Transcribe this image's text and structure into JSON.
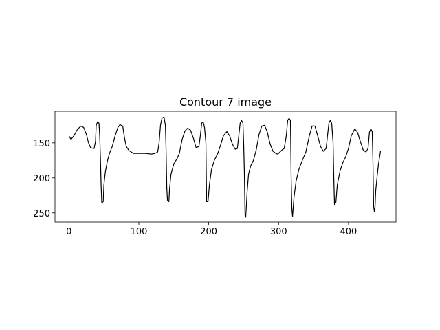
{
  "chart_data": {
    "type": "line",
    "title": "Contour 7 image",
    "color": "#000000",
    "x": [
      0,
      3,
      7,
      12,
      17,
      21,
      25,
      28,
      31,
      36,
      38,
      39,
      41,
      43,
      44,
      45,
      46,
      47,
      49,
      50,
      52,
      55,
      58,
      62,
      66,
      70,
      73,
      77,
      79,
      82,
      86,
      92,
      100,
      110,
      118,
      123,
      127,
      129,
      131,
      133,
      136,
      138,
      139,
      140,
      141,
      143,
      144,
      146,
      150,
      155,
      158,
      162,
      166,
      170,
      174,
      178,
      182,
      186,
      188,
      190,
      192,
      194,
      196,
      197,
      199,
      201,
      204,
      208,
      213,
      217,
      221,
      226,
      230,
      234,
      238,
      241,
      243,
      245,
      247,
      249,
      250,
      251,
      252,
      253,
      255,
      257,
      260,
      264,
      268,
      272,
      276,
      280,
      284,
      288,
      292,
      296,
      299,
      302,
      305,
      308,
      311,
      313,
      315,
      317,
      318,
      319,
      320,
      322,
      325,
      329,
      334,
      339,
      344,
      348,
      352,
      356,
      360,
      364,
      368,
      370,
      372,
      374,
      376,
      378,
      379,
      380,
      382,
      384,
      388,
      392,
      396,
      400,
      404,
      409,
      413,
      417,
      421,
      425,
      428,
      430,
      432,
      434,
      435,
      436,
      437,
      438,
      439,
      441,
      443,
      446
    ],
    "values": [
      140,
      145,
      140,
      131,
      126,
      128,
      138,
      150,
      157,
      158,
      148,
      125,
      120,
      122,
      140,
      170,
      210,
      236,
      234,
      210,
      192,
      176,
      165,
      155,
      140,
      128,
      124,
      126,
      140,
      155,
      161,
      165,
      165,
      165,
      166,
      165,
      163,
      150,
      125,
      115,
      113,
      125,
      160,
      215,
      232,
      234,
      215,
      195,
      180,
      172,
      165,
      145,
      133,
      129,
      132,
      143,
      157,
      155,
      140,
      122,
      120,
      128,
      150,
      234,
      234,
      210,
      188,
      175,
      165,
      153,
      140,
      134,
      140,
      152,
      159,
      158,
      140,
      122,
      118,
      122,
      150,
      190,
      253,
      256,
      220,
      195,
      183,
      175,
      160,
      138,
      126,
      125,
      135,
      152,
      162,
      165,
      166,
      163,
      160,
      158,
      140,
      118,
      115,
      118,
      200,
      245,
      255,
      228,
      205,
      188,
      175,
      163,
      140,
      126,
      126,
      140,
      155,
      162,
      158,
      140,
      122,
      118,
      122,
      150,
      200,
      238,
      235,
      210,
      190,
      178,
      170,
      158,
      140,
      130,
      135,
      148,
      160,
      163,
      158,
      135,
      130,
      134,
      175,
      240,
      248,
      242,
      218,
      198,
      180,
      161
    ],
    "xlim": [
      -20,
      468
    ],
    "ylim": [
      105,
      263
    ],
    "y_inverted": true,
    "xticks": [
      0,
      100,
      200,
      300,
      400
    ],
    "yticks": [
      150,
      200,
      250
    ],
    "grid": false
  }
}
